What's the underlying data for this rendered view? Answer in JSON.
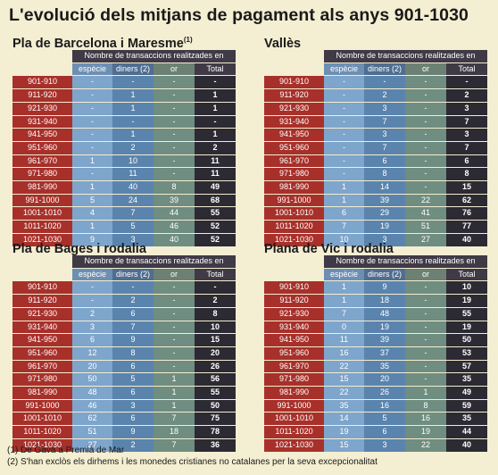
{
  "title": "L'evolució dels mitjans de pagament als anys 901-1030",
  "header_span": "Nombre de transaccions realitzades en",
  "columns": [
    "espècie",
    "diners (2)",
    "or",
    "Total"
  ],
  "notes": [
    "(1) De Gavà a Premià de Mar",
    "(2) S'han exclòs els dirhems i les monedes cristianes no catalanes per la seva excepcionalitat"
  ],
  "tables": [
    {
      "name": "Pla de Barcelona i Maresme",
      "note_mark": "(1)",
      "rows": [
        {
          "period": "901-910",
          "especie": "-",
          "diners": "-",
          "or": "-",
          "total": "-"
        },
        {
          "period": "911-920",
          "especie": "-",
          "diners": "1",
          "or": "-",
          "total": "1"
        },
        {
          "period": "921-930",
          "especie": "-",
          "diners": "1",
          "or": "-",
          "total": "1"
        },
        {
          "period": "931-940",
          "especie": "-",
          "diners": "-",
          "or": "-",
          "total": "-"
        },
        {
          "period": "941-950",
          "especie": "-",
          "diners": "1",
          "or": "-",
          "total": "1"
        },
        {
          "period": "951-960",
          "especie": "-",
          "diners": "2",
          "or": "-",
          "total": "2"
        },
        {
          "period": "961-970",
          "especie": "1",
          "diners": "10",
          "or": "-",
          "total": "11"
        },
        {
          "period": "971-980",
          "especie": "-",
          "diners": "11",
          "or": "-",
          "total": "11"
        },
        {
          "period": "981-990",
          "especie": "1",
          "diners": "40",
          "or": "8",
          "total": "49"
        },
        {
          "period": "991-1000",
          "especie": "5",
          "diners": "24",
          "or": "39",
          "total": "68"
        },
        {
          "period": "1001-1010",
          "especie": "4",
          "diners": "7",
          "or": "44",
          "total": "55"
        },
        {
          "period": "1011-1020",
          "especie": "1",
          "diners": "5",
          "or": "46",
          "total": "52"
        },
        {
          "period": "1021-1030",
          "especie": "9",
          "diners": "3",
          "or": "40",
          "total": "52"
        }
      ]
    },
    {
      "name": "Vallès",
      "note_mark": "",
      "rows": [
        {
          "period": "901-910",
          "especie": "-",
          "diners": "-",
          "or": "-",
          "total": "-"
        },
        {
          "period": "911-920",
          "especie": "-",
          "diners": "2",
          "or": "-",
          "total": "2"
        },
        {
          "period": "921-930",
          "especie": "-",
          "diners": "3",
          "or": "-",
          "total": "3"
        },
        {
          "period": "931-940",
          "especie": "-",
          "diners": "7",
          "or": "-",
          "total": "7"
        },
        {
          "period": "941-950",
          "especie": "-",
          "diners": "3",
          "or": "-",
          "total": "3"
        },
        {
          "period": "951-960",
          "especie": "-",
          "diners": "7",
          "or": "-",
          "total": "7"
        },
        {
          "period": "961-970",
          "especie": "-",
          "diners": "6",
          "or": "-",
          "total": "6"
        },
        {
          "period": "971-980",
          "especie": "-",
          "diners": "8",
          "or": "-",
          "total": "8"
        },
        {
          "period": "981-990",
          "especie": "1",
          "diners": "14",
          "or": "-",
          "total": "15"
        },
        {
          "period": "991-1000",
          "especie": "1",
          "diners": "39",
          "or": "22",
          "total": "62"
        },
        {
          "period": "1001-1010",
          "especie": "6",
          "diners": "29",
          "or": "41",
          "total": "76"
        },
        {
          "period": "1011-1020",
          "especie": "7",
          "diners": "19",
          "or": "51",
          "total": "77"
        },
        {
          "period": "1021-1030",
          "especie": "10",
          "diners": "3",
          "or": "27",
          "total": "40"
        }
      ]
    },
    {
      "name": "Pla de Bages i rodalia",
      "note_mark": "",
      "rows": [
        {
          "period": "901-910",
          "especie": "-",
          "diners": "-",
          "or": "-",
          "total": "-"
        },
        {
          "period": "911-920",
          "especie": "-",
          "diners": "2",
          "or": "-",
          "total": "2"
        },
        {
          "period": "921-930",
          "especie": "2",
          "diners": "6",
          "or": "-",
          "total": "8"
        },
        {
          "period": "931-940",
          "especie": "3",
          "diners": "7",
          "or": "-",
          "total": "10"
        },
        {
          "period": "941-950",
          "especie": "6",
          "diners": "9",
          "or": "-",
          "total": "15"
        },
        {
          "period": "951-960",
          "especie": "12",
          "diners": "8",
          "or": "-",
          "total": "20"
        },
        {
          "period": "961-970",
          "especie": "20",
          "diners": "6",
          "or": "-",
          "total": "26"
        },
        {
          "period": "971-980",
          "especie": "50",
          "diners": "5",
          "or": "1",
          "total": "56"
        },
        {
          "period": "981-990",
          "especie": "48",
          "diners": "6",
          "or": "1",
          "total": "55"
        },
        {
          "period": "991-1000",
          "especie": "46",
          "diners": "3",
          "or": "1",
          "total": "50"
        },
        {
          "period": "1001-1010",
          "especie": "62",
          "diners": "6",
          "or": "7",
          "total": "75"
        },
        {
          "period": "1011-1020",
          "especie": "51",
          "diners": "9",
          "or": "18",
          "total": "78"
        },
        {
          "period": "1021-1030",
          "especie": "27",
          "diners": "2",
          "or": "7",
          "total": "36"
        }
      ]
    },
    {
      "name": "Plana de Vic i rodalia",
      "note_mark": "",
      "rows": [
        {
          "period": "901-910",
          "especie": "1",
          "diners": "9",
          "or": "-",
          "total": "10"
        },
        {
          "period": "911-920",
          "especie": "1",
          "diners": "18",
          "or": "-",
          "total": "19"
        },
        {
          "period": "921-930",
          "especie": "7",
          "diners": "48",
          "or": "-",
          "total": "55"
        },
        {
          "period": "931-940",
          "especie": "0",
          "diners": "19",
          "or": "-",
          "total": "19"
        },
        {
          "period": "941-950",
          "especie": "11",
          "diners": "39",
          "or": "-",
          "total": "50"
        },
        {
          "period": "951-960",
          "especie": "16",
          "diners": "37",
          "or": "-",
          "total": "53"
        },
        {
          "period": "961-970",
          "especie": "22",
          "diners": "35",
          "or": "-",
          "total": "57"
        },
        {
          "period": "971-980",
          "especie": "15",
          "diners": "20",
          "or": "-",
          "total": "35"
        },
        {
          "period": "981-990",
          "especie": "22",
          "diners": "26",
          "or": "1",
          "total": "49"
        },
        {
          "period": "991-1000",
          "especie": "35",
          "diners": "16",
          "or": "8",
          "total": "59"
        },
        {
          "period": "1001-1010",
          "especie": "14",
          "diners": "5",
          "or": "16",
          "total": "35"
        },
        {
          "period": "1011-1020",
          "especie": "19",
          "diners": "6",
          "or": "19",
          "total": "44"
        },
        {
          "period": "1021-1030",
          "especie": "15",
          "diners": "3",
          "or": "22",
          "total": "40"
        }
      ]
    }
  ]
}
